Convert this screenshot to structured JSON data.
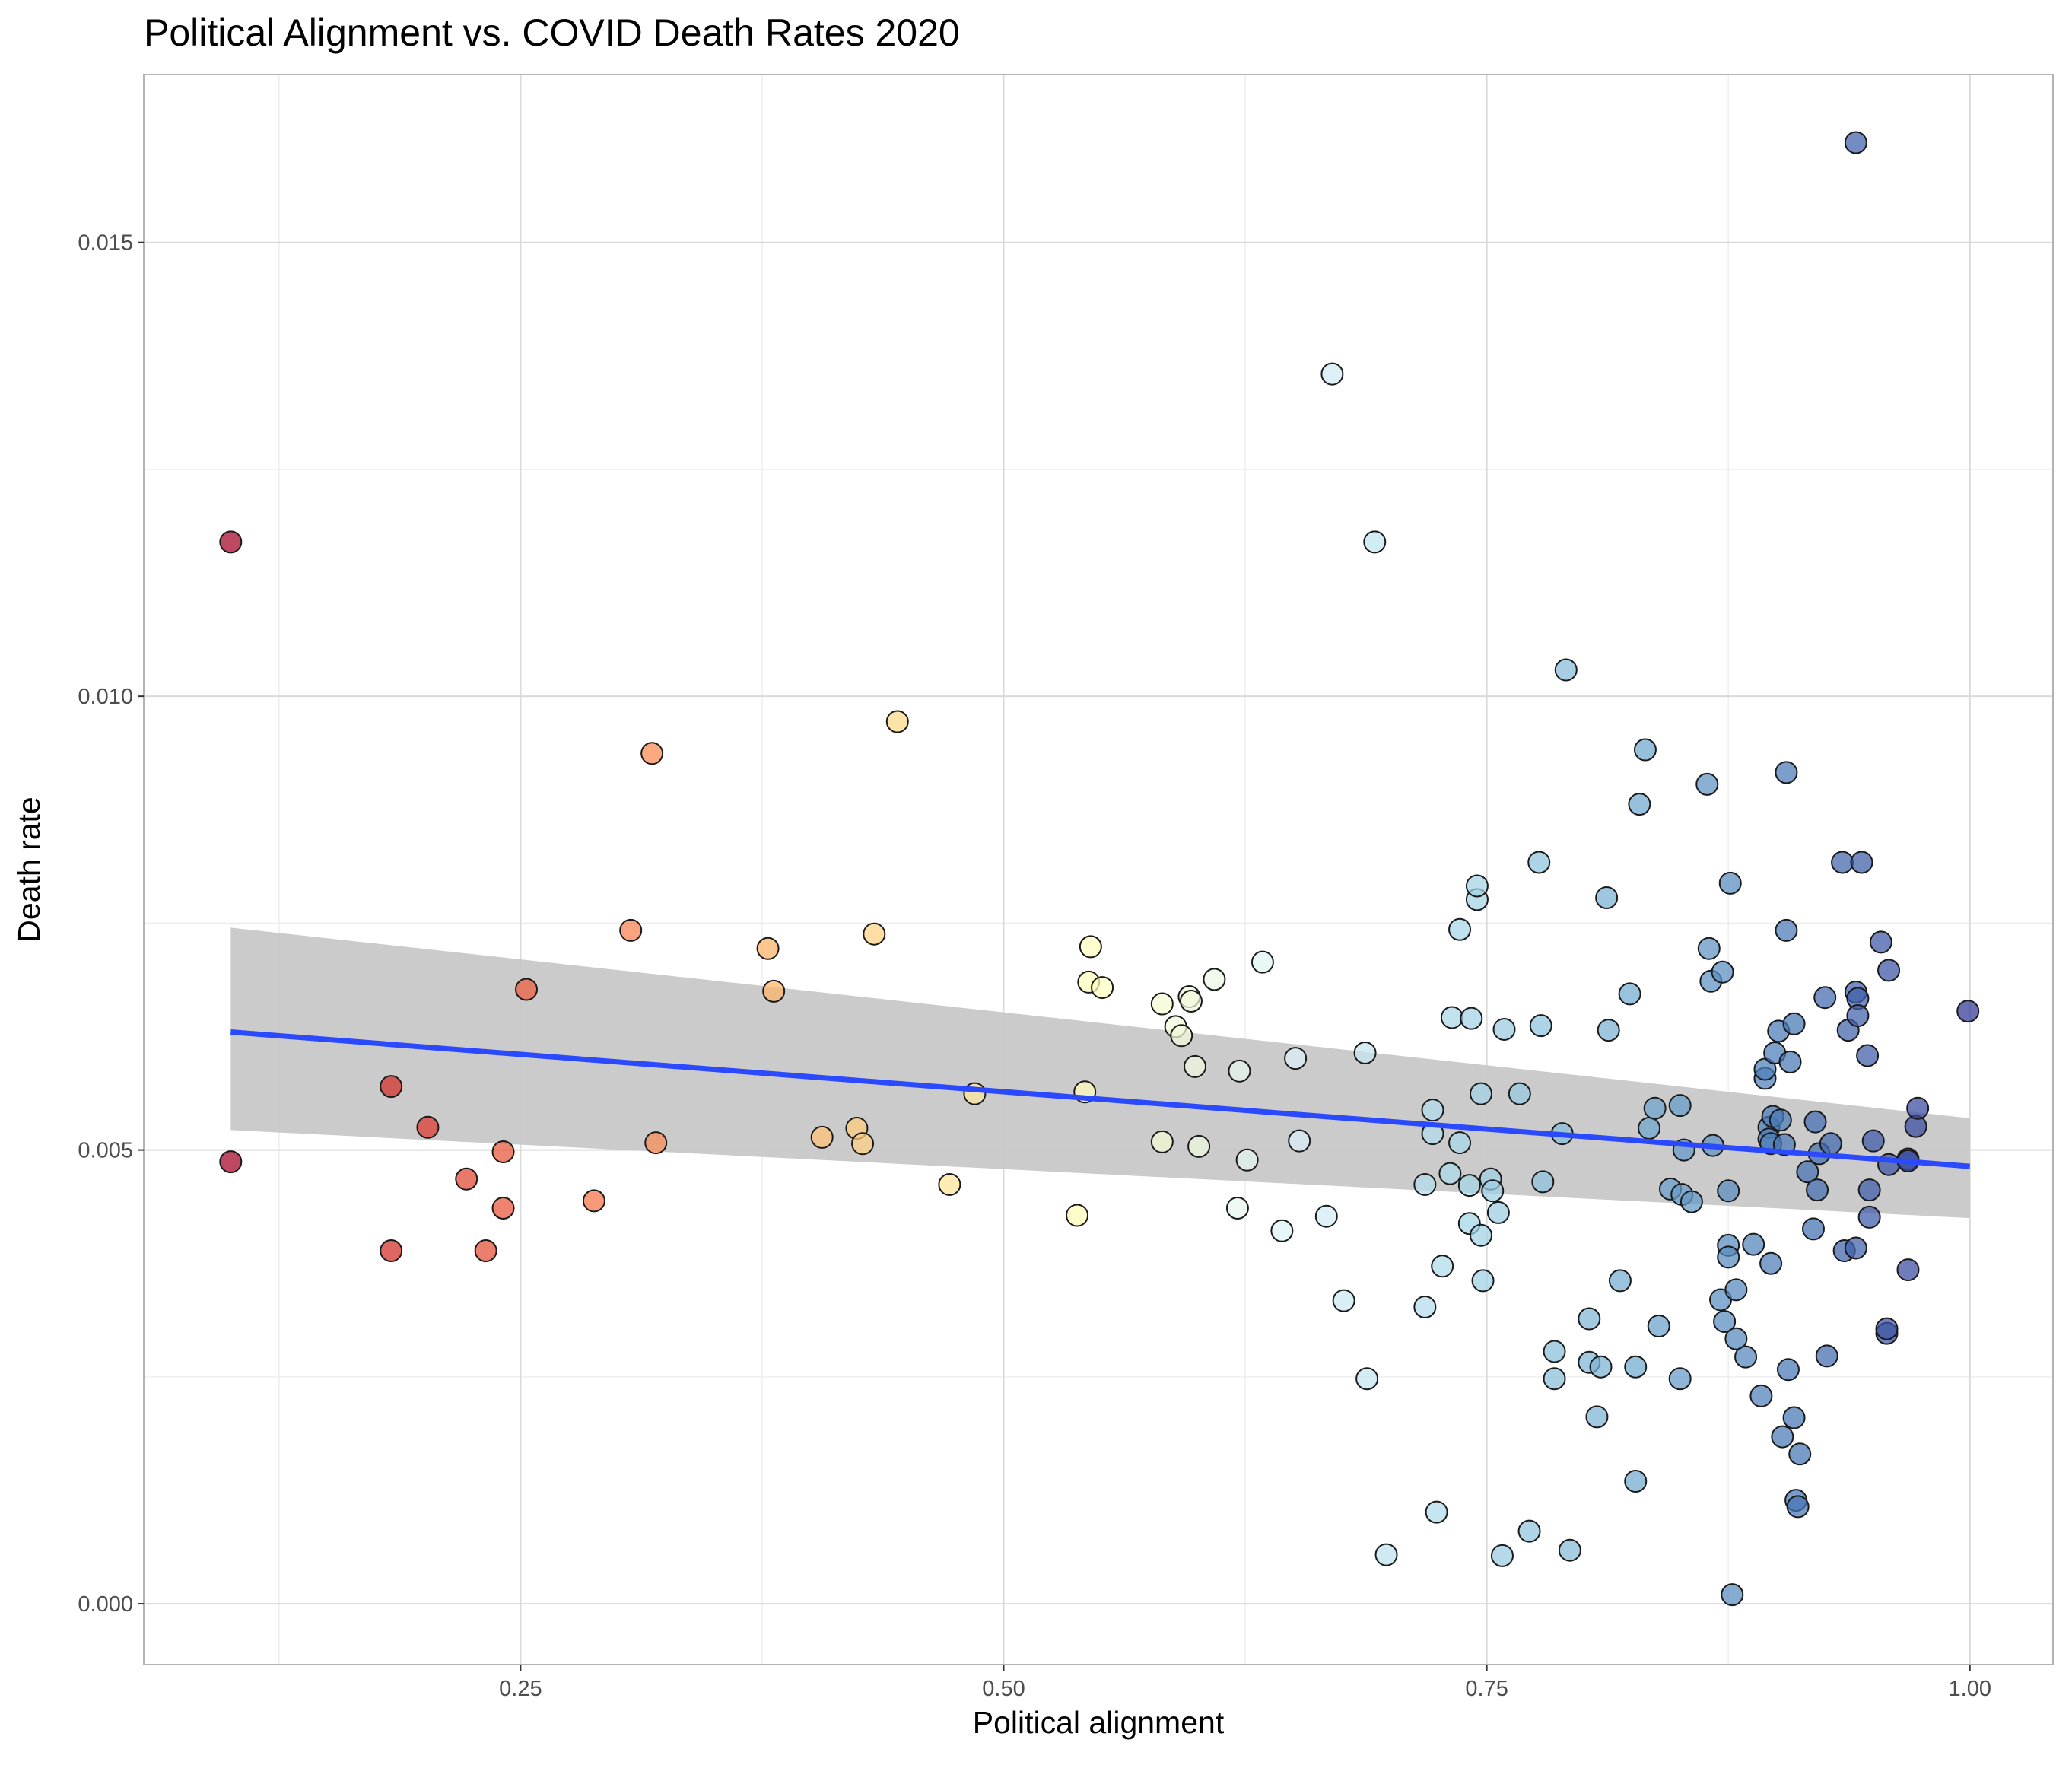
{
  "chart_data": {
    "type": "scatter",
    "title": "Political Alignment vs. COVID Death Rates 2020",
    "xlabel": "Political alignment",
    "ylabel": "Death rate",
    "xlim": [
      0.055,
      1.043
    ],
    "ylim": [
      -0.00067,
      0.01685
    ],
    "xticks": [
      0.25,
      0.5,
      0.75,
      1.0
    ],
    "xtick_labels": [
      "0.25",
      "0.50",
      "0.75",
      "1.00"
    ],
    "yticks": [
      0.0,
      0.005,
      0.01,
      0.015
    ],
    "ytick_labels": [
      "0.000",
      "0.005",
      "0.010",
      "0.015"
    ],
    "grid": true,
    "legend": "none",
    "color_scale": {
      "low": "#a50026",
      "mid": "#ffffbf",
      "high": "#313695",
      "stops": [
        "#a50026",
        "#d73027",
        "#f46d43",
        "#fdae61",
        "#fee090",
        "#ffffbf",
        "#e0f3f8",
        "#abd9e9",
        "#74add1",
        "#4575b4",
        "#313695"
      ]
    },
    "trend_line": {
      "color": "#2b49ff",
      "band_color": "#c8c8c8",
      "x": [
        0.1,
        1.0
      ],
      "y": [
        0.0063,
        0.00482
      ],
      "band_lower": [
        0.00522,
        0.00425
      ],
      "band_upper": [
        0.00745,
        0.00535
      ]
    },
    "points": [
      [
        0.1,
        0.0117
      ],
      [
        0.1,
        0.00487
      ],
      [
        0.183,
        0.0057
      ],
      [
        0.183,
        0.00389
      ],
      [
        0.202,
        0.00525
      ],
      [
        0.222,
        0.00468
      ],
      [
        0.232,
        0.00389
      ],
      [
        0.241,
        0.00436
      ],
      [
        0.241,
        0.00498
      ],
      [
        0.253,
        0.00677
      ],
      [
        0.288,
        0.00444
      ],
      [
        0.307,
        0.00742
      ],
      [
        0.318,
        0.00937
      ],
      [
        0.32,
        0.00508
      ],
      [
        0.378,
        0.00722
      ],
      [
        0.381,
        0.00675
      ],
      [
        0.406,
        0.00514
      ],
      [
        0.424,
        0.00524
      ],
      [
        0.427,
        0.00507
      ],
      [
        0.433,
        0.00738
      ],
      [
        0.445,
        0.00972
      ],
      [
        0.472,
        0.00462
      ],
      [
        0.485,
        0.00562
      ],
      [
        0.538,
        0.00428
      ],
      [
        0.542,
        0.00564
      ],
      [
        0.544,
        0.00685
      ],
      [
        0.545,
        0.00724
      ],
      [
        0.551,
        0.00679
      ],
      [
        0.582,
        0.00661
      ],
      [
        0.582,
        0.00509
      ],
      [
        0.589,
        0.00636
      ],
      [
        0.592,
        0.00626
      ],
      [
        0.596,
        0.00669
      ],
      [
        0.597,
        0.00664
      ],
      [
        0.599,
        0.00592
      ],
      [
        0.601,
        0.00504
      ],
      [
        0.609,
        0.00688
      ],
      [
        0.621,
        0.00436
      ],
      [
        0.622,
        0.00587
      ],
      [
        0.626,
        0.00489
      ],
      [
        0.634,
        0.00707
      ],
      [
        0.644,
        0.00411
      ],
      [
        0.651,
        0.00601
      ],
      [
        0.653,
        0.0051
      ],
      [
        0.667,
        0.00427
      ],
      [
        0.67,
        0.01355
      ],
      [
        0.676,
        0.00334
      ],
      [
        0.687,
        0.00607
      ],
      [
        0.688,
        0.00248
      ],
      [
        0.692,
        0.0117
      ],
      [
        0.698,
        0.00054
      ],
      [
        0.718,
        0.00327
      ],
      [
        0.718,
        0.00462
      ],
      [
        0.722,
        0.00544
      ],
      [
        0.722,
        0.00518
      ],
      [
        0.724,
        0.00101
      ],
      [
        0.727,
        0.00372
      ],
      [
        0.731,
        0.00474
      ],
      [
        0.732,
        0.00646
      ],
      [
        0.736,
        0.00743
      ],
      [
        0.736,
        0.00508
      ],
      [
        0.741,
        0.00419
      ],
      [
        0.741,
        0.00461
      ],
      [
        0.742,
        0.00645
      ],
      [
        0.745,
        0.00776
      ],
      [
        0.745,
        0.00791
      ],
      [
        0.747,
        0.00562
      ],
      [
        0.747,
        0.00406
      ],
      [
        0.748,
        0.00356
      ],
      [
        0.752,
        0.00468
      ],
      [
        0.753,
        0.00455
      ],
      [
        0.756,
        0.00431
      ],
      [
        0.758,
        0.00053
      ],
      [
        0.759,
        0.00633
      ],
      [
        0.767,
        0.00562
      ],
      [
        0.772,
        0.0008
      ],
      [
        0.777,
        0.00817
      ],
      [
        0.778,
        0.00637
      ],
      [
        0.779,
        0.00465
      ],
      [
        0.785,
        0.00248
      ],
      [
        0.785,
        0.00278
      ],
      [
        0.789,
        0.00518
      ],
      [
        0.791,
        0.01029
      ],
      [
        0.793,
        0.00059
      ],
      [
        0.803,
        0.00266
      ],
      [
        0.803,
        0.00314
      ],
      [
        0.807,
        0.00206
      ],
      [
        0.809,
        0.00261
      ],
      [
        0.812,
        0.00778
      ],
      [
        0.813,
        0.00632
      ],
      [
        0.819,
        0.00356
      ],
      [
        0.824,
        0.00672
      ],
      [
        0.827,
        0.00135
      ],
      [
        0.827,
        0.00261
      ],
      [
        0.829,
        0.00881
      ],
      [
        0.832,
        0.00941
      ],
      [
        0.834,
        0.00524
      ],
      [
        0.837,
        0.00546
      ],
      [
        0.839,
        0.00306
      ],
      [
        0.845,
        0.00457
      ],
      [
        0.85,
        0.00549
      ],
      [
        0.85,
        0.00248
      ],
      [
        0.851,
        0.00451
      ],
      [
        0.852,
        0.005
      ],
      [
        0.856,
        0.00443
      ],
      [
        0.864,
        0.00903
      ],
      [
        0.865,
        0.00722
      ],
      [
        0.866,
        0.00686
      ],
      [
        0.867,
        0.00505
      ],
      [
        0.871,
        0.00335
      ],
      [
        0.872,
        0.00696
      ],
      [
        0.873,
        0.00311
      ],
      [
        0.875,
        0.00395
      ],
      [
        0.875,
        0.00382
      ],
      [
        0.875,
        0.00455
      ],
      [
        0.876,
        0.00794
      ],
      [
        0.877,
        0.0001
      ],
      [
        0.879,
        0.00346
      ],
      [
        0.879,
        0.00292
      ],
      [
        0.884,
        0.00272
      ],
      [
        0.888,
        0.00396
      ],
      [
        0.892,
        0.00229
      ],
      [
        0.894,
        0.00579
      ],
      [
        0.894,
        0.00589
      ],
      [
        0.896,
        0.00525
      ],
      [
        0.896,
        0.00512
      ],
      [
        0.897,
        0.00375
      ],
      [
        0.897,
        0.00507
      ],
      [
        0.898,
        0.00537
      ],
      [
        0.899,
        0.00607
      ],
      [
        0.901,
        0.00631
      ],
      [
        0.902,
        0.00533
      ],
      [
        0.903,
        0.00184
      ],
      [
        0.904,
        0.00506
      ],
      [
        0.905,
        0.00916
      ],
      [
        0.905,
        0.00742
      ],
      [
        0.906,
        0.00258
      ],
      [
        0.907,
        0.00597
      ],
      [
        0.909,
        0.00205
      ],
      [
        0.909,
        0.00639
      ],
      [
        0.91,
        0.00114
      ],
      [
        0.911,
        0.00107
      ],
      [
        0.912,
        0.00165
      ],
      [
        0.916,
        0.00476
      ],
      [
        0.919,
        0.00413
      ],
      [
        0.92,
        0.00531
      ],
      [
        0.921,
        0.00456
      ],
      [
        0.922,
        0.00496
      ],
      [
        0.925,
        0.00668
      ],
      [
        0.926,
        0.00273
      ],
      [
        0.928,
        0.00507
      ],
      [
        0.934,
        0.00817
      ],
      [
        0.935,
        0.00389
      ],
      [
        0.937,
        0.00632
      ],
      [
        0.941,
        0.00674
      ],
      [
        0.941,
        0.00392
      ],
      [
        0.942,
        0.00667
      ],
      [
        0.942,
        0.00648
      ],
      [
        0.944,
        0.00817
      ],
      [
        0.947,
        0.00604
      ],
      [
        0.948,
        0.00426
      ],
      [
        0.948,
        0.00456
      ],
      [
        0.95,
        0.0051
      ],
      [
        0.954,
        0.00729
      ],
      [
        0.957,
        0.00298
      ],
      [
        0.957,
        0.00303
      ],
      [
        0.958,
        0.00484
      ],
      [
        0.958,
        0.00698
      ],
      [
        0.968,
        0.0049
      ],
      [
        0.968,
        0.00368
      ],
      [
        0.968,
        0.00488
      ],
      [
        0.972,
        0.00526
      ],
      [
        0.973,
        0.00546
      ],
      [
        0.941,
        0.0161
      ],
      [
        0.999,
        0.00653
      ]
    ]
  }
}
